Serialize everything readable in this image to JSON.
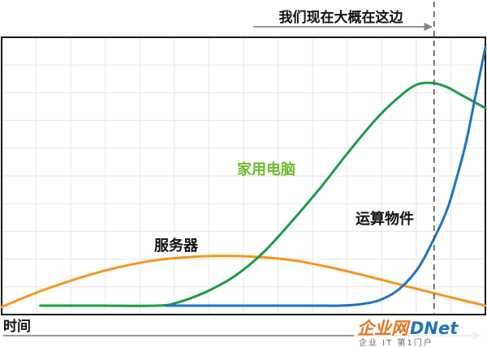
{
  "chart_data": {
    "type": "line",
    "x_range": [
      0,
      100
    ],
    "y_range": [
      0,
      100
    ],
    "grid": true,
    "xlabel": "时间",
    "series": [
      {
        "name": "服务器",
        "color": "#F7941D",
        "points": [
          [
            0,
            -0.5
          ],
          [
            8,
            5.5
          ],
          [
            16,
            10.5
          ],
          [
            24,
            14.5
          ],
          [
            32,
            17.3
          ],
          [
            40,
            18.6
          ],
          [
            46,
            18.9
          ],
          [
            52,
            18.6
          ],
          [
            60,
            17.3
          ],
          [
            68,
            14.5
          ],
          [
            76,
            11
          ],
          [
            84,
            7.2
          ],
          [
            92,
            3.5
          ],
          [
            100,
            0
          ]
        ]
      },
      {
        "name": "家用电脑",
        "color": "#1E9A46",
        "points": [
          [
            8,
            0
          ],
          [
            20,
            0
          ],
          [
            32,
            0
          ],
          [
            36,
            1
          ],
          [
            42,
            5
          ],
          [
            48,
            11
          ],
          [
            54,
            20
          ],
          [
            60,
            32
          ],
          [
            66,
            45
          ],
          [
            72,
            59
          ],
          [
            78,
            72
          ],
          [
            83,
            80.5
          ],
          [
            86,
            84
          ],
          [
            89,
            84.5
          ],
          [
            92,
            83
          ],
          [
            95,
            80
          ],
          [
            98,
            77
          ],
          [
            100,
            75
          ]
        ]
      },
      {
        "name": "运算物件",
        "color": "#1E73BE",
        "points": [
          [
            34,
            0
          ],
          [
            50,
            0
          ],
          [
            66,
            0
          ],
          [
            70,
            0
          ],
          [
            74,
            0.5
          ],
          [
            78,
            2
          ],
          [
            82,
            6
          ],
          [
            86,
            14
          ],
          [
            89,
            24
          ],
          [
            92,
            36
          ],
          [
            94,
            48
          ],
          [
            96,
            62
          ],
          [
            98,
            80
          ],
          [
            99,
            89
          ],
          [
            100,
            98
          ]
        ]
      }
    ],
    "annotations": {
      "now_marker": {
        "x": 89.4,
        "text": "我们现在大概在这边"
      }
    }
  },
  "watermark": {
    "text_main_a": "企业网",
    "text_main_b": "DNet",
    "text_sub": "企业 IT 第1门户"
  }
}
